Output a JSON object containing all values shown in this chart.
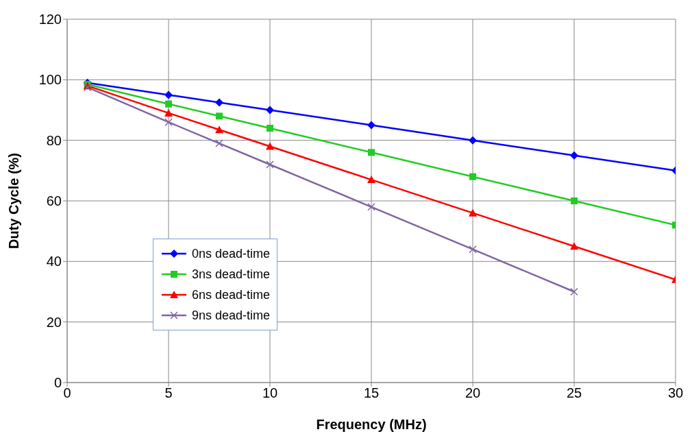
{
  "chart_data": {
    "type": "line",
    "xlabel": "Frequency (MHz)",
    "ylabel": "Duty Cycle (%)",
    "x": [
      1,
      5,
      7.5,
      10,
      15,
      20,
      25,
      30
    ],
    "series": [
      {
        "name": "0ns dead-time",
        "color": "#0000ff",
        "marker": "diamond",
        "values": [
          99,
          95,
          92.5,
          90,
          85,
          80,
          75,
          70
        ]
      },
      {
        "name": "3ns dead-time",
        "color": "#22cc22",
        "marker": "square",
        "values": [
          98.5,
          92,
          88,
          84,
          76,
          68,
          60,
          52
        ]
      },
      {
        "name": "6ns dead-time",
        "color": "#ff0000",
        "marker": "triangle",
        "values": [
          98,
          89,
          83.5,
          78,
          67,
          56,
          45,
          34
        ]
      },
      {
        "name": "9ns dead-time",
        "color": "#8064a2",
        "marker": "cross",
        "values": [
          97.5,
          86,
          79,
          72,
          58,
          44,
          30,
          null
        ]
      }
    ],
    "xlim": [
      0,
      30
    ],
    "xticks": [
      0,
      5,
      10,
      15,
      20,
      25,
      30
    ],
    "ylim": [
      0,
      120
    ],
    "yticks": [
      0,
      20,
      40,
      60,
      80,
      100,
      120
    ],
    "grid": true,
    "legend": "bottom left",
    "line_style": "solid"
  }
}
